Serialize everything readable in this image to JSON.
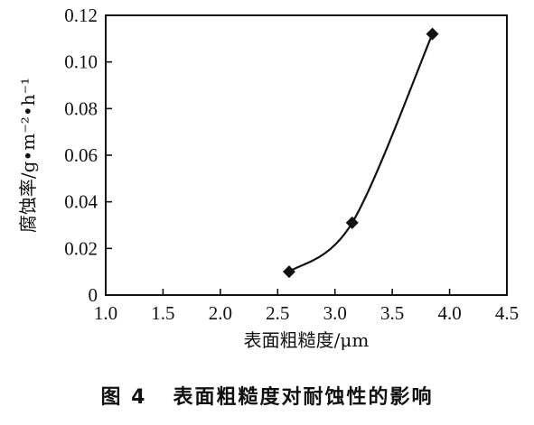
{
  "chart_data": {
    "type": "line",
    "x": [
      2.6,
      3.15,
      3.85
    ],
    "values": [
      0.01,
      0.031,
      0.112
    ],
    "xlabel": "表面粗糙度/μm",
    "ylabel": "腐蚀率/g•m⁻²•h⁻¹",
    "xlim": [
      1.0,
      4.5
    ],
    "ylim": [
      0,
      0.12
    ],
    "xticks": [
      "1.0",
      "1.5",
      "2.0",
      "2.5",
      "3.0",
      "3.5",
      "4.0",
      "4.5"
    ],
    "yticks": [
      "0",
      "0.02",
      "0.04",
      "0.06",
      "0.08",
      "0.10",
      "0.12"
    ],
    "marker": "diamond",
    "grid": false,
    "line_color": "#111111"
  },
  "caption": "图 4   表面粗糙度对耐蚀性的影响"
}
